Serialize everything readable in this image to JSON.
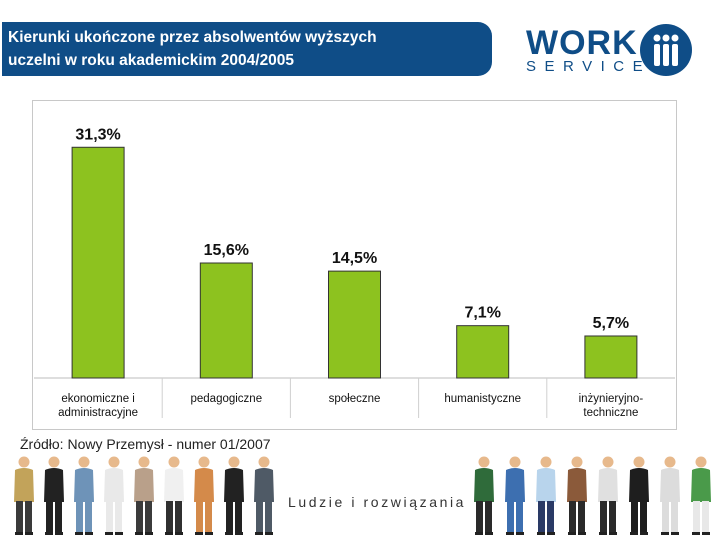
{
  "header": {
    "title_line1": "Kierunki ukończone przez absolwentów wyższych",
    "title_line2": "uczelni w roku akademickim 2004/2005"
  },
  "logo": {
    "word1": "WORK",
    "word2": "SERVICE"
  },
  "colors": {
    "bar": "#8dc21f",
    "title_bg": "#0f4d87",
    "brand": "#0f4d87"
  },
  "chart_data": {
    "type": "bar",
    "categories": [
      "ekonomiczne i administracyjne",
      "pedagogiczne",
      "społeczne",
      "humanistyczne",
      "inżynieryjno-techniczne"
    ],
    "category_lines": [
      [
        "ekonomiczne i",
        "administracyjne"
      ],
      [
        "pedagogiczne"
      ],
      [
        "społeczne"
      ],
      [
        "humanistyczne"
      ],
      [
        "inżynieryjno-",
        "techniczne"
      ]
    ],
    "values": [
      31.3,
      15.6,
      14.5,
      7.1,
      5.7
    ],
    "data_labels": [
      "31,3%",
      "15,6%",
      "14,5%",
      "7,1%",
      "5,7%"
    ],
    "title": "",
    "xlabel": "",
    "ylabel": "",
    "ylim": [
      0,
      35
    ],
    "grid": false,
    "legend": "none"
  },
  "footer": {
    "source": "Źródło: Nowy Przemysł - numer 01/2007",
    "slogan": "Ludzie i rozwiązania"
  }
}
